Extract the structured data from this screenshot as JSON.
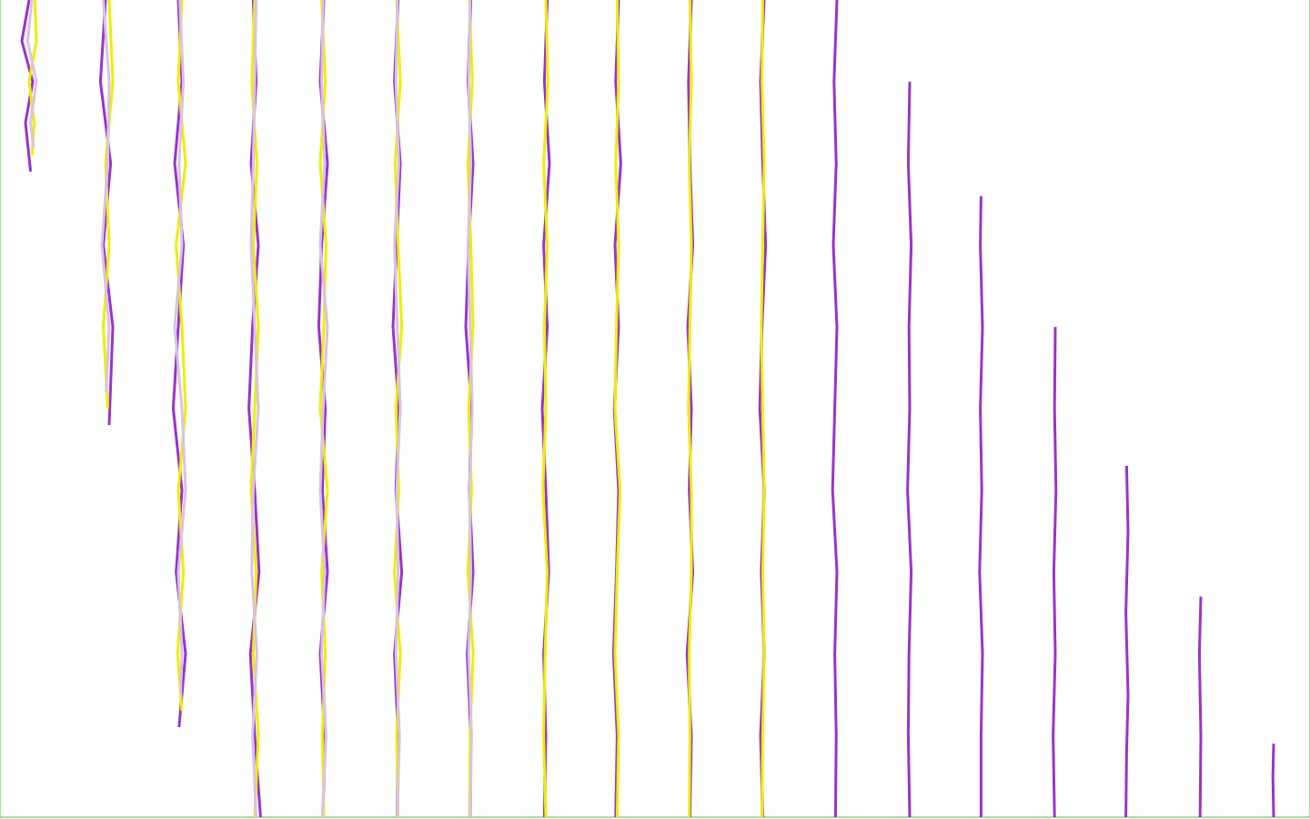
{
  "chart_data": {
    "type": "line",
    "grid": true,
    "tick_labels": false,
    "xlim": [
      0,
      18
    ],
    "xticks": [
      1,
      2,
      3,
      4,
      5,
      6,
      7,
      8,
      9,
      10,
      11,
      12,
      13,
      14,
      15,
      16,
      17
    ],
    "ylim": [
      0,
      100
    ],
    "yticks": [
      0,
      100
    ],
    "series": [
      {
        "color": "#9933cc",
        "x": [
          0.4,
          0.3,
          0.45,
          0.35,
          0.42
        ],
        "values": [
          0,
          5,
          10,
          15,
          21
        ]
      },
      {
        "color": "#eeee00",
        "x": [
          0.48,
          0.5,
          0.4,
          0.47,
          0.44
        ],
        "values": [
          0,
          5,
          10,
          15,
          19
        ]
      },
      {
        "color": "#d9c2e6",
        "x": [
          0.44,
          0.38,
          0.5,
          0.42,
          0.46
        ],
        "values": [
          0,
          5,
          10,
          15,
          18
        ]
      },
      {
        "color": "#9933cc",
        "x": [
          1.45,
          1.38,
          1.52,
          1.42,
          1.55,
          1.5
        ],
        "values": [
          0,
          10,
          20,
          30,
          40,
          52
        ]
      },
      {
        "color": "#eeee00",
        "x": [
          1.5,
          1.55,
          1.45,
          1.5,
          1.42,
          1.48
        ],
        "values": [
          0,
          10,
          20,
          30,
          40,
          50
        ]
      },
      {
        "color": "#d9c2e6",
        "x": [
          1.42,
          1.5,
          1.48,
          1.4,
          1.5,
          1.46
        ],
        "values": [
          0,
          10,
          20,
          30,
          40,
          48
        ]
      },
      {
        "color": "#9933cc",
        "x": [
          2.45,
          2.5,
          2.4,
          2.52,
          2.45,
          2.38,
          2.5,
          2.42,
          2.55,
          2.46
        ],
        "values": [
          0,
          10,
          20,
          30,
          40,
          50,
          60,
          70,
          80,
          89
        ]
      },
      {
        "color": "#eeee00",
        "x": [
          2.5,
          2.45,
          2.55,
          2.42,
          2.5,
          2.55,
          2.45,
          2.52,
          2.44,
          2.5
        ],
        "values": [
          0,
          10,
          20,
          30,
          40,
          50,
          60,
          70,
          80,
          87
        ]
      },
      {
        "color": "#d9c2e6",
        "x": [
          2.47,
          2.52,
          2.46,
          2.5,
          2.4,
          2.5,
          2.55,
          2.45,
          2.5,
          2.48
        ],
        "values": [
          0,
          10,
          20,
          30,
          40,
          50,
          60,
          70,
          80,
          85
        ]
      },
      {
        "color": "#9933cc",
        "x": [
          3.48,
          3.52,
          3.45,
          3.55,
          3.47,
          3.42,
          3.5,
          3.56,
          3.44,
          3.5,
          3.58
        ],
        "values": [
          0,
          10,
          20,
          30,
          40,
          50,
          60,
          70,
          80,
          90,
          100
        ]
      },
      {
        "color": "#eeee00",
        "x": [
          3.5,
          3.46,
          3.53,
          3.48,
          3.55,
          3.5,
          3.45,
          3.52,
          3.48,
          3.55,
          3.5
        ],
        "values": [
          0,
          10,
          20,
          30,
          40,
          50,
          60,
          70,
          80,
          90,
          100
        ]
      },
      {
        "color": "#d9c2e6",
        "x": [
          3.52,
          3.5,
          3.48,
          3.45,
          3.5,
          3.55,
          3.48,
          3.46,
          3.53,
          3.47,
          3.52
        ],
        "values": [
          0,
          10,
          20,
          30,
          40,
          50,
          60,
          70,
          80,
          90,
          100
        ]
      },
      {
        "color": "#9933cc",
        "x": [
          4.45,
          4.4,
          4.5,
          4.42,
          4.38,
          4.47,
          4.43,
          4.5,
          4.4,
          4.46,
          4.44
        ],
        "values": [
          0,
          10,
          20,
          30,
          40,
          50,
          60,
          70,
          80,
          90,
          100
        ]
      },
      {
        "color": "#eeee00",
        "x": [
          4.42,
          4.47,
          4.4,
          4.48,
          4.45,
          4.4,
          4.5,
          4.42,
          4.47,
          4.43,
          4.45
        ],
        "values": [
          0,
          10,
          20,
          30,
          40,
          50,
          60,
          70,
          80,
          90,
          100
        ]
      },
      {
        "color": "#d9c2e6",
        "x": [
          4.44,
          4.42,
          4.46,
          4.4,
          4.5,
          4.44,
          4.4,
          4.46,
          4.42,
          4.48,
          4.43
        ],
        "values": [
          0,
          10,
          20,
          30,
          40,
          50,
          60,
          70,
          80,
          90,
          100
        ]
      },
      {
        "color": "#9933cc",
        "x": [
          5.47,
          5.42,
          5.5,
          5.45,
          5.4,
          5.48,
          5.44,
          5.52,
          5.42,
          5.47,
          5.46
        ],
        "values": [
          0,
          10,
          20,
          30,
          40,
          50,
          60,
          70,
          80,
          90,
          100
        ]
      },
      {
        "color": "#eeee00",
        "x": [
          5.45,
          5.5,
          5.43,
          5.47,
          5.52,
          5.44,
          5.48,
          5.42,
          5.5,
          5.45,
          5.47
        ],
        "values": [
          0,
          10,
          20,
          30,
          40,
          50,
          60,
          70,
          80,
          90,
          100
        ]
      },
      {
        "color": "#d9c2e6",
        "x": [
          5.46,
          5.44,
          5.48,
          5.42,
          5.46,
          5.5,
          5.45,
          5.47,
          5.44,
          5.49,
          5.46
        ],
        "values": [
          0,
          10,
          20,
          30,
          40,
          50,
          60,
          70,
          80,
          90,
          100
        ]
      },
      {
        "color": "#9933cc",
        "x": [
          6.47,
          6.43,
          6.5,
          6.44,
          6.4,
          6.48,
          6.45,
          6.5,
          6.42,
          6.47,
          6.46
        ],
        "values": [
          0,
          10,
          20,
          30,
          40,
          50,
          60,
          70,
          80,
          90,
          100
        ]
      },
      {
        "color": "#eeee00",
        "x": [
          6.45,
          6.49,
          6.43,
          6.47,
          6.5,
          6.44,
          6.48,
          6.43,
          6.5,
          6.46,
          6.45
        ],
        "values": [
          0,
          10,
          20,
          30,
          40,
          50,
          60,
          70,
          80,
          90,
          100
        ]
      },
      {
        "color": "#d9c2e6",
        "x": [
          6.46,
          6.44,
          6.47,
          6.43,
          6.46,
          6.49,
          6.45,
          6.47,
          6.44,
          6.48,
          6.46
        ],
        "values": [
          0,
          10,
          20,
          30,
          40,
          50,
          60,
          70,
          80,
          90,
          100
        ]
      },
      {
        "color": "#9933cc",
        "x": [
          7.52,
          7.48,
          7.55,
          7.47,
          7.52,
          7.45,
          7.5,
          7.54,
          7.47,
          7.5,
          7.48
        ],
        "values": [
          0,
          10,
          20,
          30,
          40,
          50,
          60,
          70,
          80,
          90,
          100
        ]
      },
      {
        "color": "#eeee00",
        "x": [
          7.5,
          7.53,
          7.47,
          7.52,
          7.48,
          7.5,
          7.46,
          7.52,
          7.49,
          7.47,
          7.5
        ],
        "values": [
          0,
          10,
          20,
          30,
          40,
          50,
          60,
          70,
          80,
          90,
          100
        ]
      },
      {
        "color": "#9933cc",
        "x": [
          8.5,
          8.46,
          8.53,
          8.45,
          8.5,
          8.44,
          8.5,
          8.47,
          8.43,
          8.48,
          8.46
        ],
        "values": [
          0,
          10,
          20,
          30,
          40,
          50,
          60,
          70,
          80,
          90,
          100
        ]
      },
      {
        "color": "#eeee00",
        "x": [
          8.48,
          8.5,
          8.46,
          8.5,
          8.47,
          8.45,
          8.52,
          8.48,
          8.45,
          8.5,
          8.48
        ],
        "values": [
          0,
          10,
          20,
          30,
          40,
          50,
          60,
          70,
          80,
          90,
          100
        ]
      },
      {
        "color": "#9933cc",
        "x": [
          9.5,
          9.46,
          9.48,
          9.52,
          9.45,
          9.5,
          9.47,
          9.52,
          9.44,
          9.5,
          9.48
        ],
        "values": [
          0,
          10,
          20,
          30,
          40,
          50,
          60,
          70,
          80,
          90,
          100
        ]
      },
      {
        "color": "#eeee00",
        "x": [
          9.48,
          9.5,
          9.47,
          9.5,
          9.48,
          9.46,
          9.5,
          9.5,
          9.47,
          9.48,
          9.47
        ],
        "values": [
          0,
          10,
          20,
          30,
          40,
          50,
          60,
          70,
          80,
          90,
          100
        ]
      },
      {
        "color": "#9933cc",
        "x": [
          10.5,
          10.45,
          10.48,
          10.52,
          10.47,
          10.44,
          10.5,
          10.46,
          10.5,
          10.45,
          10.48
        ],
        "values": [
          0,
          10,
          20,
          30,
          40,
          50,
          60,
          70,
          80,
          90,
          100
        ]
      },
      {
        "color": "#eeee00",
        "x": [
          10.48,
          10.47,
          10.5,
          10.48,
          10.46,
          10.48,
          10.5,
          10.48,
          10.5,
          10.48,
          10.47
        ],
        "values": [
          0,
          10,
          20,
          30,
          40,
          50,
          60,
          70,
          80,
          90,
          100
        ]
      },
      {
        "color": "#9933cc",
        "x": [
          11.5,
          11.46,
          11.49,
          11.45,
          11.5,
          11.47,
          11.44,
          11.5,
          11.47,
          11.49,
          11.48
        ],
        "values": [
          0,
          10,
          20,
          30,
          40,
          50,
          60,
          70,
          80,
          90,
          100
        ]
      },
      {
        "color": "#9933cc",
        "x": [
          12.5,
          12.48,
          12.52,
          12.49,
          12.5,
          12.47,
          12.52,
          12.49,
          12.48,
          12.5
        ],
        "values": [
          10,
          20,
          30,
          40,
          50,
          60,
          70,
          80,
          90,
          100
        ]
      },
      {
        "color": "#9933cc",
        "x": [
          13.48,
          13.47,
          13.5,
          13.47,
          13.49,
          13.46,
          13.5,
          13.48,
          13.48
        ],
        "values": [
          24,
          30,
          40,
          50,
          60,
          70,
          80,
          90,
          100
        ]
      },
      {
        "color": "#9933cc",
        "x": [
          14.5,
          14.49,
          14.51,
          14.48,
          14.5,
          14.47,
          14.49
        ],
        "values": [
          40,
          50,
          60,
          70,
          80,
          90,
          100
        ]
      },
      {
        "color": "#9933cc",
        "x": [
          15.48,
          15.5,
          15.47,
          15.5,
          15.48,
          15.47
        ],
        "values": [
          57,
          65,
          75,
          85,
          92,
          100
        ]
      },
      {
        "color": "#9933cc",
        "x": [
          16.5,
          16.48,
          16.5,
          16.49
        ],
        "values": [
          73,
          80,
          90,
          100
        ]
      },
      {
        "color": "#9933cc",
        "x": [
          17.5,
          17.49,
          17.5
        ],
        "values": [
          91,
          95,
          100
        ]
      }
    ]
  }
}
